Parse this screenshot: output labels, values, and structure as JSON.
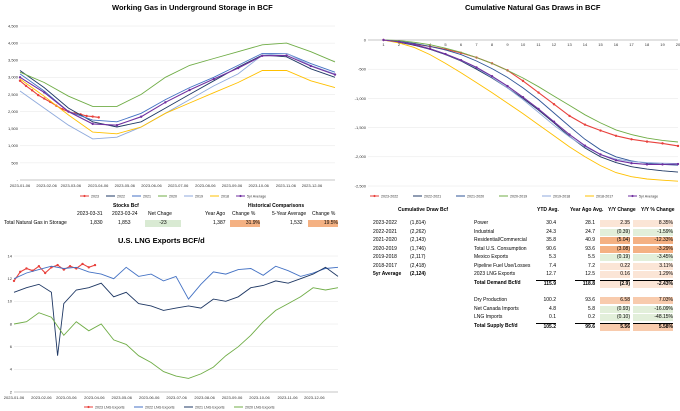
{
  "storage_table": {
    "stocks_header": "Stocks Bcf",
    "date1": "2023-03-31",
    "date2": "2023-03-24",
    "net_change_label": "Net Chage",
    "row_label": "Total Natural Gas in Storage",
    "value1": "1,830",
    "value2": "1,853",
    "net_change": "-23",
    "hist_header": "Historical Comparisons",
    "year_ago_label": "Year Ago",
    "change_pct_label": "Change %",
    "five_year_label": "5-Year Average",
    "change_pct_label2": "Change %",
    "year_ago": "1,387",
    "year_ago_change": "31.9%",
    "five_year": "1,532",
    "five_year_change": "19.5%"
  },
  "draw_list": {
    "header": "Cumulative Draw Bcf",
    "rows": [
      {
        "label": "2023-2022",
        "value": "(1,814)"
      },
      {
        "label": "2022-2021",
        "value": "(2,262)"
      },
      {
        "label": "2021-2020",
        "value": "(2,143)"
      },
      {
        "label": "2020-2019",
        "value": "(1,746)"
      },
      {
        "label": "2019-2018",
        "value": "(2,117)"
      },
      {
        "label": "2018-2017",
        "value": "(2,418)"
      },
      {
        "label": "5yr Average",
        "value": "(2,124)"
      }
    ]
  },
  "demand_table": {
    "headers": [
      "YTD Avg.",
      "Year Ago Avg.",
      "Y/Y Change",
      "Y/Y % Change"
    ],
    "demand_rows": [
      {
        "label": "Power",
        "ytd": "30.4",
        "ya": "28.1",
        "chg": "2.35",
        "pct": "8.35%"
      },
      {
        "label": "Industrial",
        "ytd": "24.3",
        "ya": "24.7",
        "chg": "(0.39)",
        "pct": "-1.59%"
      },
      {
        "label": "Residential/Commercial",
        "ytd": "35.8",
        "ya": "40.9",
        "chg": "(5.04)",
        "pct": "-12.33%"
      },
      {
        "label": "Total U.S. Consumption",
        "ytd": "90.6",
        "ya": "93.6",
        "chg": "(3.08)",
        "pct": "-3.29%"
      },
      {
        "label": "Mexico Exports",
        "ytd": "5.3",
        "ya": "5.5",
        "chg": "(0.19)",
        "pct": "-3.45%"
      },
      {
        "label": "Pipeline Fuel Use/Losses",
        "ytd": "7.4",
        "ya": "7.2",
        "chg": "0.22",
        "pct": "3.11%"
      },
      {
        "label": "2023 LNG Exports",
        "ytd": "12.7",
        "ya": "12.5",
        "chg": "0.16",
        "pct": "1.29%"
      },
      {
        "label": "Total Demand Bcf/d",
        "ytd": "115.9",
        "ya": "118.8",
        "chg": "(2.9)",
        "pct": "-2.43%"
      }
    ],
    "supply_rows": [
      {
        "label": "Dry Production",
        "ytd": "100.2",
        "ya": "93.6",
        "chg": "6.58",
        "pct": "7.03%"
      },
      {
        "label": "Net Canada Imports",
        "ytd": "4.8",
        "ya": "5.8",
        "chg": "(0.93)",
        "pct": "-16.09%"
      },
      {
        "label": "LNG Imports",
        "ytd": "0.1",
        "ya": "0.2",
        "chg": "(0.10)",
        "pct": "-48.15%"
      },
      {
        "label": "Total Supply Bcf/d",
        "ytd": "105.2",
        "ya": "99.6",
        "chg": "5.56",
        "pct": "5.58%"
      }
    ]
  },
  "chart_data": [
    {
      "type": "line",
      "title": "Working Gas in Underground Storage in BCF",
      "ylim": [
        0,
        4500
      ],
      "yticks": [
        "-",
        "500",
        "1,000",
        "1,500",
        "2,000",
        "2,500",
        "3,000",
        "3,500",
        "4,000",
        "4,500"
      ],
      "xticks": [
        "2023-01-06",
        "2023-02-06",
        "2023-03-06",
        "2023-04-06",
        "2023-05-06",
        "2023-06-06",
        "2023-07-06",
        "2023-08-06",
        "2023-09-06",
        "2023-10-06",
        "2023-11-06",
        "2023-12-06"
      ],
      "xlim": [
        0,
        52
      ],
      "series": [
        {
          "name": "2023",
          "color": "#e8413c",
          "marker": true,
          "x": [
            0,
            1,
            2,
            3,
            4,
            5,
            6,
            7,
            8,
            9,
            10,
            11,
            12,
            13
          ],
          "values": [
            2900,
            2750,
            2620,
            2480,
            2380,
            2280,
            2170,
            2070,
            2000,
            1950,
            1920,
            1870,
            1853,
            1830
          ]
        },
        {
          "name": "2022",
          "color": "#1f3864",
          "x": [
            0,
            4,
            8,
            12,
            16,
            20,
            24,
            28,
            32,
            36,
            40,
            44,
            48,
            52
          ],
          "values": [
            3200,
            2700,
            2100,
            1700,
            1550,
            1700,
            2100,
            2500,
            2900,
            3300,
            3650,
            3600,
            3250,
            3000
          ]
        },
        {
          "name": "2021",
          "color": "#4472c4",
          "x": [
            0,
            4,
            8,
            12,
            16,
            20,
            24,
            28,
            32,
            36,
            40,
            44,
            48,
            52
          ],
          "values": [
            3100,
            2600,
            2000,
            1750,
            1700,
            1950,
            2350,
            2700,
            3000,
            3350,
            3700,
            3700,
            3400,
            3150
          ]
        },
        {
          "name": "2020",
          "color": "#70ad47",
          "x": [
            0,
            4,
            8,
            12,
            16,
            20,
            24,
            28,
            32,
            36,
            40,
            44,
            48,
            52
          ],
          "values": [
            3150,
            2850,
            2450,
            2150,
            2150,
            2500,
            3000,
            3350,
            3550,
            3750,
            3950,
            4000,
            3750,
            3450
          ]
        },
        {
          "name": "2019",
          "color": "#8faadc",
          "x": [
            0,
            4,
            8,
            12,
            16,
            20,
            24,
            28,
            32,
            36,
            40,
            44,
            48,
            52
          ],
          "values": [
            2600,
            2100,
            1600,
            1200,
            1250,
            1550,
            1950,
            2350,
            2750,
            3100,
            3650,
            3700,
            3350,
            3100
          ]
        },
        {
          "name": "2018",
          "color": "#ffc000",
          "x": [
            0,
            4,
            8,
            12,
            16,
            20,
            24,
            28,
            32,
            36,
            40,
            44,
            48,
            52
          ],
          "values": [
            2950,
            2450,
            1900,
            1400,
            1350,
            1550,
            1950,
            2250,
            2550,
            2850,
            3200,
            3200,
            2900,
            2700
          ]
        },
        {
          "name": "5yr Average",
          "color": "#7030a0",
          "marker": true,
          "x": [
            0,
            4,
            8,
            12,
            16,
            20,
            24,
            28,
            32,
            36,
            40,
            44,
            48,
            52
          ],
          "values": [
            3000,
            2560,
            2000,
            1640,
            1600,
            1850,
            2270,
            2630,
            2950,
            3270,
            3630,
            3640,
            3330,
            3080
          ]
        }
      ]
    },
    {
      "type": "line",
      "title": "Cumulative Natural Gas Draws in BCF",
      "ylim": [
        -2500,
        0
      ],
      "yticks": [
        "0",
        "-500",
        "-1,000",
        "-1,500",
        "-2,000",
        "-2,500"
      ],
      "xticks": [
        "1",
        "2",
        "3",
        "4",
        "5",
        "6",
        "7",
        "8",
        "9",
        "10",
        "11",
        "12",
        "13",
        "14",
        "15",
        "16",
        "17",
        "18",
        "19",
        "20"
      ],
      "xlim": [
        0,
        20
      ],
      "series": [
        {
          "name": "2023-2022",
          "color": "#e8413c",
          "marker": true,
          "x": [
            1,
            2,
            3,
            4,
            5,
            6,
            7,
            8,
            9,
            10,
            11,
            12,
            13,
            14,
            15,
            16,
            17,
            18,
            19,
            20
          ],
          "values": [
            0,
            -30,
            -70,
            -110,
            -160,
            -220,
            -300,
            -400,
            -520,
            -700,
            -900,
            -1100,
            -1300,
            -1450,
            -1550,
            -1640,
            -1700,
            -1740,
            -1770,
            -1814
          ]
        },
        {
          "name": "2022-2021",
          "color": "#1f3864",
          "x": [
            1,
            2,
            3,
            4,
            5,
            6,
            7,
            8,
            9,
            10,
            11,
            12,
            13,
            14,
            15,
            16,
            17,
            18,
            19,
            20
          ],
          "values": [
            0,
            -40,
            -90,
            -160,
            -250,
            -360,
            -500,
            -650,
            -820,
            -1000,
            -1200,
            -1420,
            -1650,
            -1850,
            -2000,
            -2100,
            -2170,
            -2210,
            -2240,
            -2262
          ]
        },
        {
          "name": "2021-2020",
          "color": "#2f5597",
          "x": [
            1,
            2,
            3,
            4,
            5,
            6,
            7,
            8,
            9,
            10,
            11,
            12,
            13,
            14,
            15,
            16,
            17,
            18,
            19,
            20
          ],
          "values": [
            0,
            -20,
            -60,
            -110,
            -170,
            -250,
            -360,
            -490,
            -640,
            -820,
            -1020,
            -1250,
            -1480,
            -1700,
            -1880,
            -2000,
            -2070,
            -2110,
            -2130,
            -2143
          ]
        },
        {
          "name": "2020-2019",
          "color": "#70ad47",
          "x": [
            1,
            2,
            3,
            4,
            5,
            6,
            7,
            8,
            9,
            10,
            11,
            12,
            13,
            14,
            15,
            16,
            17,
            18,
            19,
            20
          ],
          "values": [
            0,
            -10,
            -40,
            -80,
            -140,
            -210,
            -300,
            -400,
            -520,
            -650,
            -800,
            -960,
            -1120,
            -1280,
            -1420,
            -1540,
            -1620,
            -1680,
            -1720,
            -1746
          ]
        },
        {
          "name": "2019-2018",
          "color": "#8faadc",
          "x": [
            1,
            2,
            3,
            4,
            5,
            6,
            7,
            8,
            9,
            10,
            11,
            12,
            13,
            14,
            15,
            16,
            17,
            18,
            19,
            20
          ],
          "values": [
            0,
            -30,
            -80,
            -150,
            -240,
            -350,
            -480,
            -640,
            -820,
            -1020,
            -1240,
            -1460,
            -1660,
            -1830,
            -1960,
            -2040,
            -2080,
            -2100,
            -2110,
            -2117
          ]
        },
        {
          "name": "2018-2017",
          "color": "#ffc000",
          "x": [
            1,
            2,
            3,
            4,
            5,
            6,
            7,
            8,
            9,
            10,
            11,
            12,
            13,
            14,
            15,
            16,
            17,
            18,
            19,
            20
          ],
          "values": [
            0,
            -50,
            -130,
            -250,
            -400,
            -560,
            -730,
            -900,
            -1080,
            -1260,
            -1450,
            -1640,
            -1830,
            -2000,
            -2150,
            -2270,
            -2340,
            -2380,
            -2400,
            -2418
          ]
        },
        {
          "name": "5yr Average",
          "color": "#7030a0",
          "marker": true,
          "x": [
            1,
            2,
            3,
            4,
            5,
            6,
            7,
            8,
            9,
            10,
            11,
            12,
            13,
            14,
            15,
            16,
            17,
            18,
            19,
            20
          ],
          "values": [
            0,
            -30,
            -80,
            -150,
            -240,
            -345,
            -470,
            -620,
            -790,
            -980,
            -1180,
            -1400,
            -1620,
            -1810,
            -1960,
            -2060,
            -2110,
            -2130,
            -2130,
            -2124
          ]
        }
      ]
    },
    {
      "type": "line",
      "title": "U.S. LNG Exports BCF/d",
      "ylim": [
        2,
        14
      ],
      "yticks": [
        "2",
        "4",
        "6",
        "8",
        "10",
        "12",
        "14"
      ],
      "xticks": [
        "2023-01-06",
        "2023-02-06",
        "2023-03-06",
        "2023-04-06",
        "2023-05-06",
        "2023-06-06",
        "2023-07-06",
        "2023-08-06",
        "2023-09-06",
        "2023-10-06",
        "2023-11-06",
        "2023-12-06"
      ],
      "xlim": [
        0,
        52
      ],
      "series": [
        {
          "name": "2023 LNG Exports",
          "color": "#e8413c",
          "marker": true,
          "x": [
            0,
            1,
            2,
            3,
            4,
            5,
            6,
            7,
            8,
            9,
            10,
            11,
            12,
            13
          ],
          "values": [
            11.8,
            12.6,
            12.9,
            12.7,
            13.1,
            12.5,
            13.0,
            13.2,
            12.8,
            13.1,
            12.9,
            13.3,
            13.0,
            13.2
          ]
        },
        {
          "name": "2022 LNG Exports",
          "color": "#4472c4",
          "x": [
            0,
            2,
            4,
            6,
            8,
            10,
            12,
            14,
            16,
            18,
            20,
            22,
            24,
            26,
            28,
            30,
            32,
            34,
            36,
            38,
            40,
            42,
            44,
            46,
            48,
            50,
            52
          ],
          "values": [
            12.0,
            12.5,
            12.8,
            13.1,
            12.9,
            13.0,
            12.6,
            12.4,
            12.0,
            13.0,
            12.2,
            12.4,
            11.8,
            12.2,
            10.2,
            11.5,
            12.6,
            12.4,
            12.8,
            12.9,
            12.3,
            13.1,
            12.7,
            12.2,
            12.5,
            12.9,
            13.0
          ]
        },
        {
          "name": "2021 LNG Exports",
          "color": "#1f3864",
          "x": [
            0,
            2,
            4,
            6,
            7,
            8,
            10,
            12,
            14,
            16,
            18,
            20,
            22,
            24,
            26,
            28,
            30,
            32,
            34,
            36,
            38,
            40,
            42,
            44,
            46,
            48,
            50,
            52
          ],
          "values": [
            10.8,
            11.2,
            11.5,
            10.8,
            5.2,
            9.8,
            11.0,
            11.2,
            11.6,
            10.4,
            10.8,
            9.8,
            9.6,
            9.2,
            9.4,
            9.6,
            9.4,
            10.2,
            10.0,
            10.4,
            11.2,
            11.4,
            11.8,
            11.6,
            12.0,
            12.4,
            13.0,
            12.2
          ]
        },
        {
          "name": "2020 LNG Exports",
          "color": "#70ad47",
          "x": [
            0,
            2,
            4,
            6,
            8,
            10,
            12,
            14,
            16,
            18,
            20,
            22,
            24,
            26,
            28,
            30,
            32,
            34,
            36,
            38,
            40,
            42,
            44,
            46,
            48,
            50,
            52
          ],
          "values": [
            8.0,
            8.2,
            9.0,
            8.6,
            7.0,
            8.2,
            7.4,
            8.0,
            6.6,
            6.2,
            5.2,
            4.6,
            3.8,
            3.4,
            3.2,
            3.6,
            4.2,
            5.2,
            6.0,
            7.0,
            8.2,
            9.2,
            9.8,
            10.4,
            11.2,
            11.0,
            11.2
          ]
        }
      ]
    }
  ]
}
